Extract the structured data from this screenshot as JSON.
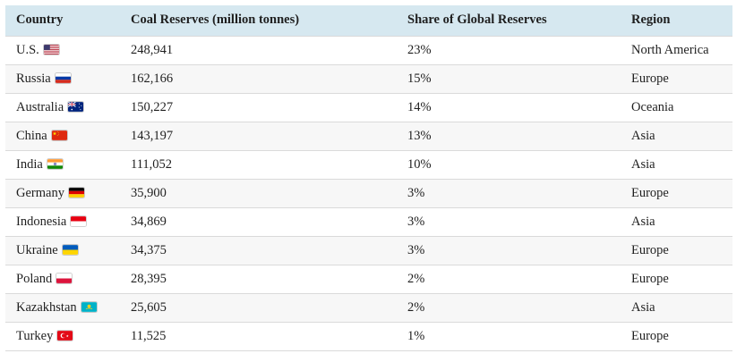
{
  "chart_data": {
    "type": "table",
    "columns": [
      "Country",
      "Coal Reserves (million tonnes)",
      "Share of Global Reserves",
      "Region"
    ],
    "rows": [
      {
        "country": "U.S.",
        "flag": "us",
        "reserves": "248,941",
        "share": "23%",
        "region": "North America"
      },
      {
        "country": "Russia",
        "flag": "ru",
        "reserves": "162,166",
        "share": "15%",
        "region": "Europe"
      },
      {
        "country": "Australia",
        "flag": "au",
        "reserves": "150,227",
        "share": "14%",
        "region": "Oceania"
      },
      {
        "country": "China",
        "flag": "cn",
        "reserves": "143,197",
        "share": "13%",
        "region": "Asia"
      },
      {
        "country": "India",
        "flag": "in",
        "reserves": "111,052",
        "share": "10%",
        "region": "Asia"
      },
      {
        "country": "Germany",
        "flag": "de",
        "reserves": "35,900",
        "share": "3%",
        "region": "Europe"
      },
      {
        "country": "Indonesia",
        "flag": "id",
        "reserves": "34,869",
        "share": "3%",
        "region": "Asia"
      },
      {
        "country": "Ukraine",
        "flag": "ua",
        "reserves": "34,375",
        "share": "3%",
        "region": "Europe"
      },
      {
        "country": "Poland",
        "flag": "pl",
        "reserves": "28,395",
        "share": "2%",
        "region": "Europe"
      },
      {
        "country": "Kazakhstan",
        "flag": "kz",
        "reserves": "25,605",
        "share": "2%",
        "region": "Asia"
      },
      {
        "country": "Turkey",
        "flag": "tr",
        "reserves": "11,525",
        "share": "1%",
        "region": "Europe"
      }
    ]
  },
  "colors": {
    "header_bg": "#d6e8f0",
    "row_alt_bg": "#f7f7f7",
    "row_border": "#dadada",
    "text": "#1f1f1f",
    "background": "#ffffff"
  }
}
